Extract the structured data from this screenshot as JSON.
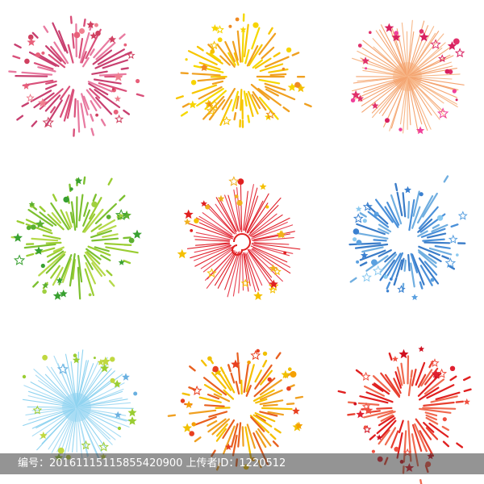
{
  "footer": {
    "text": "编号：20161115115855420900 上传者ID：1220512"
  }
}
